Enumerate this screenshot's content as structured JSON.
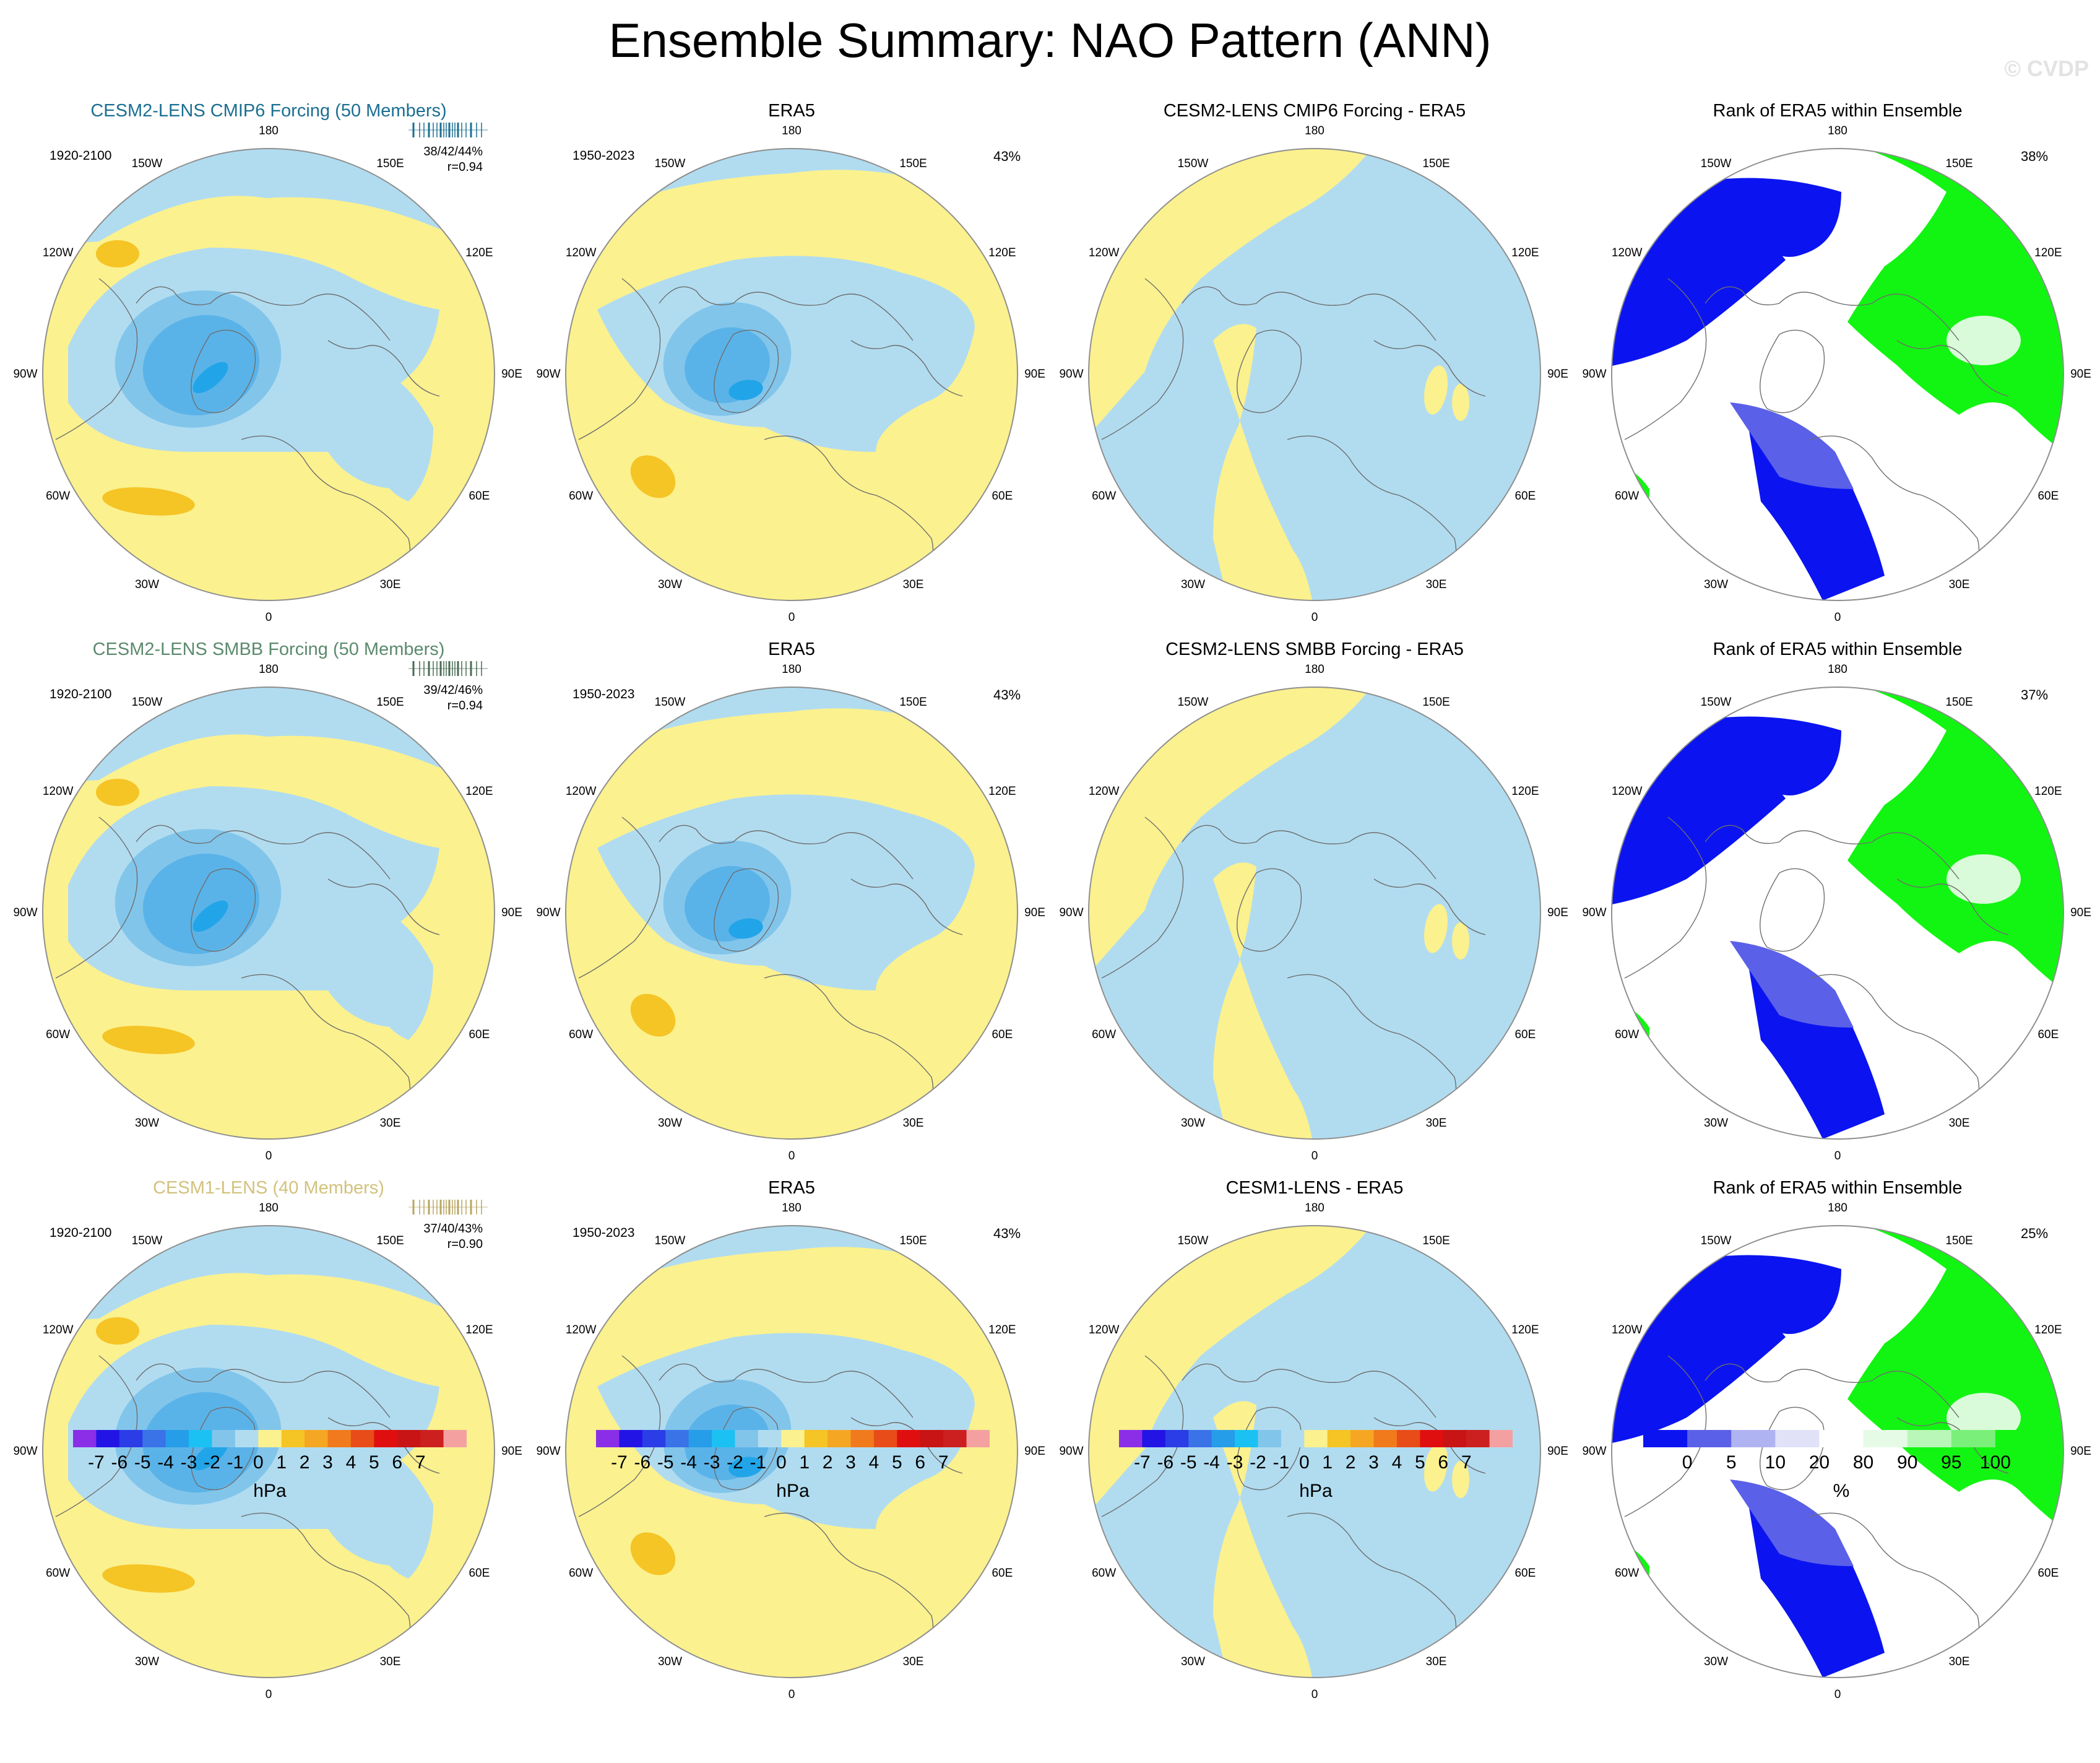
{
  "title": "Ensemble Summary: NAO Pattern (ANN)",
  "watermark": "© CVDP",
  "colors": {
    "pos1": "#fbf18e",
    "pos2": "#f5c425",
    "neg1": "#b1dcf0",
    "neg2": "#82c5eb",
    "neg3": "#5ab3e8",
    "neg4": "#21a5e8",
    "rank_low": "#0b14f0",
    "rank_mid": "#5b60e8",
    "rank_white": "#ffffff",
    "rank_high": "#12f512",
    "rank_paleGreen": "#d9fbd9",
    "coast": "#6e6e6e",
    "border": "#8f8f8f"
  },
  "lon_labels": [
    "180",
    "150W",
    "150E",
    "120W",
    "120E",
    "90W",
    "90E",
    "60W",
    "60E",
    "30W",
    "30E",
    "0"
  ],
  "rows": [
    {
      "ens": {
        "title": "CESM2-LENS CMIP6 Forcing (50 Members)",
        "title_color": "#1b6f92",
        "period": "1920-2100",
        "pct": "38/42/44%",
        "r": "r=0.94",
        "tick_color": "#1b6f92"
      },
      "obs": {
        "title": "ERA5",
        "period": "1950-2023",
        "pct": "43%"
      },
      "diff": {
        "title": "CESM2-LENS CMIP6 Forcing - ERA5"
      },
      "rank": {
        "title": "Rank of ERA5 within Ensemble",
        "pct": "38%"
      }
    },
    {
      "ens": {
        "title": "CESM2-LENS SMBB Forcing (50 Members)",
        "title_color": "#5b8a6d",
        "period": "1920-2100",
        "pct": "39/42/46%",
        "r": "r=0.94",
        "tick_color": "#486b53"
      },
      "obs": {
        "title": "ERA5",
        "period": "1950-2023",
        "pct": "43%"
      },
      "diff": {
        "title": "CESM2-LENS SMBB Forcing - ERA5"
      },
      "rank": {
        "title": "Rank of ERA5 within Ensemble",
        "pct": "37%"
      }
    },
    {
      "ens": {
        "title": "CESM1-LENS (40 Members)",
        "title_color": "#d3c27d",
        "period": "1920-2100",
        "pct": "37/40/43%",
        "r": "r=0.90",
        "tick_color": "#b8a660"
      },
      "obs": {
        "title": "ERA5",
        "period": "1950-2023",
        "pct": "43%"
      },
      "diff": {
        "title": "CESM1-LENS - ERA5"
      },
      "rank": {
        "title": "Rank of ERA5 within Ensemble",
        "pct": "25%"
      }
    }
  ],
  "colorbar_hpa": {
    "colors": [
      "#8b2ee8",
      "#2314e6",
      "#2b3de6",
      "#3a72e8",
      "#269de8",
      "#1bc1f2",
      "#82c5eb",
      "#b1dcf0",
      "#fbf18e",
      "#f5c425",
      "#f5a623",
      "#f07a1c",
      "#e84c18",
      "#e00f0f",
      "#c81414",
      "#cc2020",
      "#f5a0a0"
    ],
    "labels": [
      "-7",
      "-6",
      "-5",
      "-4",
      "-3",
      "-2",
      "-1",
      "0",
      "1",
      "2",
      "3",
      "4",
      "5",
      "6",
      "7"
    ],
    "unit": "hPa"
  },
  "colorbar_rank": {
    "colors": [
      "#0b14f0",
      "#5b60e8",
      "#b0b3f2",
      "#e1e2f8",
      "#ffffff",
      "#e6fbe6",
      "#b8f7b8",
      "#7af07a",
      "#12f512"
    ],
    "labels": [
      "0",
      "5",
      "10",
      "20",
      "80",
      "90",
      "95",
      "100"
    ],
    "unit": "%"
  }
}
